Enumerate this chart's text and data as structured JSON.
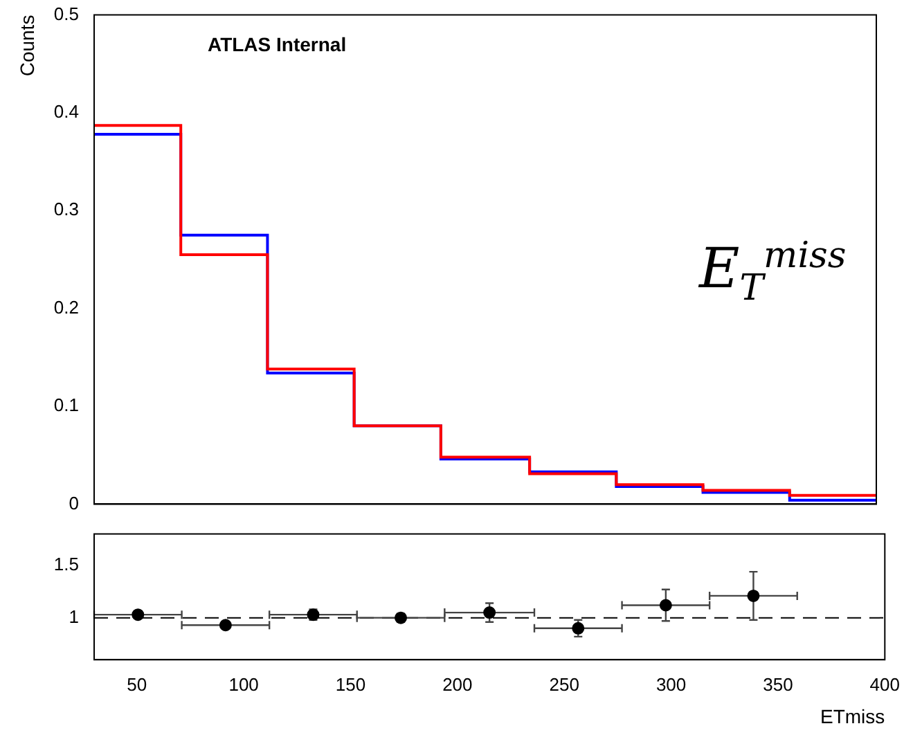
{
  "chart_data": [
    {
      "type": "histogram",
      "ylabel": "Counts",
      "bins": [
        30,
        71,
        112,
        153,
        194,
        236,
        277,
        318,
        359,
        400
      ],
      "xlim": [
        30,
        400
      ],
      "xticks": [
        50,
        100,
        150,
        200,
        250,
        300,
        350,
        400
      ],
      "ylim": [
        0,
        0.5
      ],
      "yticks": [
        0,
        0.1,
        0.2,
        0.3,
        0.4,
        0.5
      ],
      "tick_labels": "y",
      "grid": false,
      "legend": false,
      "series": [
        {
          "color": "#ff0000",
          "values": [
            0.387,
            0.255,
            0.138,
            0.08,
            0.048,
            0.031,
            0.02,
            0.014,
            0.009
          ]
        },
        {
          "color": "#0000ff",
          "values": [
            0.378,
            0.275,
            0.134,
            0.08,
            0.046,
            0.033,
            0.018,
            0.012,
            0.004
          ]
        }
      ],
      "annotations": [
        "ATLAS Internal",
        "E$_{T}$$^{miss}$"
      ]
    },
    {
      "type": "scatter",
      "xlabel": "ETmiss",
      "x": [
        50.5,
        91.5,
        132.5,
        173.5,
        215,
        256.5,
        297.5,
        338.5
      ],
      "values": [
        1.03,
        0.93,
        1.03,
        1.0,
        1.05,
        0.9,
        1.12,
        1.21
      ],
      "errors": [
        0.01,
        0.01,
        0.05,
        0.04,
        0.09,
        0.08,
        0.15,
        0.23
      ],
      "xerrors": [
        20.5,
        20.5,
        20.5,
        20.5,
        21,
        20.5,
        20.5,
        20.5
      ],
      "color": "#000000",
      "marker": "circle",
      "xlim": [
        30,
        400
      ],
      "xticks": [
        50,
        100,
        150,
        200,
        250,
        300,
        350,
        400
      ],
      "ylim": [
        0.6,
        1.8
      ],
      "yticks": [
        1,
        1.5
      ],
      "grid": false,
      "legend": false,
      "ref_lines": [
        {
          "axis": "y",
          "value": 1,
          "line_style": "dashed",
          "color": "#000000"
        }
      ]
    }
  ]
}
